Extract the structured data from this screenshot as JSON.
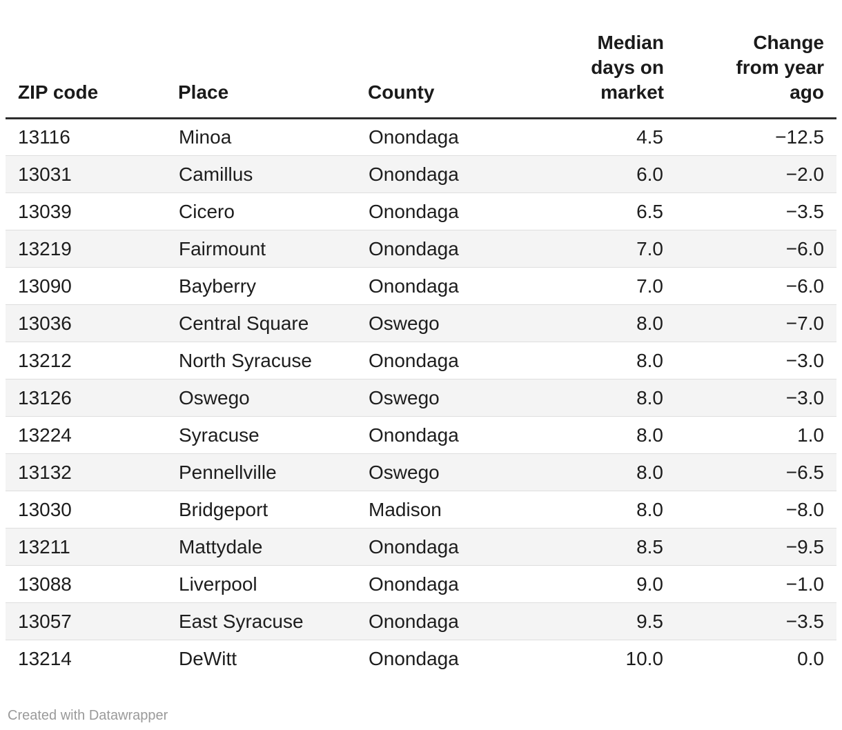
{
  "table": {
    "columns": [
      {
        "id": "zip",
        "label": "ZIP code",
        "align": "left"
      },
      {
        "id": "place",
        "label": "Place",
        "align": "left"
      },
      {
        "id": "county",
        "label": "County",
        "align": "left"
      },
      {
        "id": "median",
        "label": "Median\ndays on\nmarket",
        "align": "right"
      },
      {
        "id": "change",
        "label": "Change\nfrom year\nago",
        "align": "right"
      }
    ],
    "rows": [
      [
        "13116",
        "Minoa",
        "Onondaga",
        "4.5",
        "−12.5"
      ],
      [
        "13031",
        "Camillus",
        "Onondaga",
        "6.0",
        "−2.0"
      ],
      [
        "13039",
        "Cicero",
        "Onondaga",
        "6.5",
        "−3.5"
      ],
      [
        "13219",
        "Fairmount",
        "Onondaga",
        "7.0",
        "−6.0"
      ],
      [
        "13090",
        "Bayberry",
        "Onondaga",
        "7.0",
        "−6.0"
      ],
      [
        "13036",
        "Central Square",
        "Oswego",
        "8.0",
        "−7.0"
      ],
      [
        "13212",
        "North Syracuse",
        "Onondaga",
        "8.0",
        "−3.0"
      ],
      [
        "13126",
        "Oswego",
        "Oswego",
        "8.0",
        "−3.0"
      ],
      [
        "13224",
        "Syracuse",
        "Onondaga",
        "8.0",
        "1.0"
      ],
      [
        "13132",
        "Pennellville",
        "Oswego",
        "8.0",
        "−6.5"
      ],
      [
        "13030",
        "Bridgeport",
        "Madison",
        "8.0",
        "−8.0"
      ],
      [
        "13211",
        "Mattydale",
        "Onondaga",
        "8.5",
        "−9.5"
      ],
      [
        "13088",
        "Liverpool",
        "Onondaga",
        "9.0",
        "−1.0"
      ],
      [
        "13057",
        "East Syracuse",
        "Onondaga",
        "9.5",
        "−3.5"
      ],
      [
        "13214",
        "DeWitt",
        "Onondaga",
        "10.0",
        "0.0"
      ]
    ]
  },
  "footer": {
    "credit": "Created with Datawrapper"
  },
  "colors": {
    "header_rule": "#2d2d2d",
    "row_divider": "#dedede",
    "zebra_row_bg": "#f4f4f4",
    "body_text": "#1d1d1d",
    "footer_text": "#9a9a9a"
  },
  "chart_data": {
    "type": "table",
    "columns": [
      "ZIP code",
      "Place",
      "County",
      "Median days on market",
      "Change from year ago"
    ],
    "rows": [
      [
        "13116",
        "Minoa",
        "Onondaga",
        4.5,
        -12.5
      ],
      [
        "13031",
        "Camillus",
        "Onondaga",
        6.0,
        -2.0
      ],
      [
        "13039",
        "Cicero",
        "Onondaga",
        6.5,
        -3.5
      ],
      [
        "13219",
        "Fairmount",
        "Onondaga",
        7.0,
        -6.0
      ],
      [
        "13090",
        "Bayberry",
        "Onondaga",
        7.0,
        -6.0
      ],
      [
        "13036",
        "Central Square",
        "Oswego",
        8.0,
        -7.0
      ],
      [
        "13212",
        "North Syracuse",
        "Onondaga",
        8.0,
        -3.0
      ],
      [
        "13126",
        "Oswego",
        "Oswego",
        8.0,
        -3.0
      ],
      [
        "13224",
        "Syracuse",
        "Onondaga",
        8.0,
        1.0
      ],
      [
        "13132",
        "Pennellville",
        "Oswego",
        8.0,
        -6.5
      ],
      [
        "13030",
        "Bridgeport",
        "Madison",
        8.0,
        -8.0
      ],
      [
        "13211",
        "Mattydale",
        "Onondaga",
        8.5,
        -9.5
      ],
      [
        "13088",
        "Liverpool",
        "Onondaga",
        9.0,
        -1.0
      ],
      [
        "13057",
        "East Syracuse",
        "Onondaga",
        9.5,
        -3.5
      ],
      [
        "13214",
        "DeWitt",
        "Onondaga",
        10.0,
        0.0
      ]
    ]
  }
}
